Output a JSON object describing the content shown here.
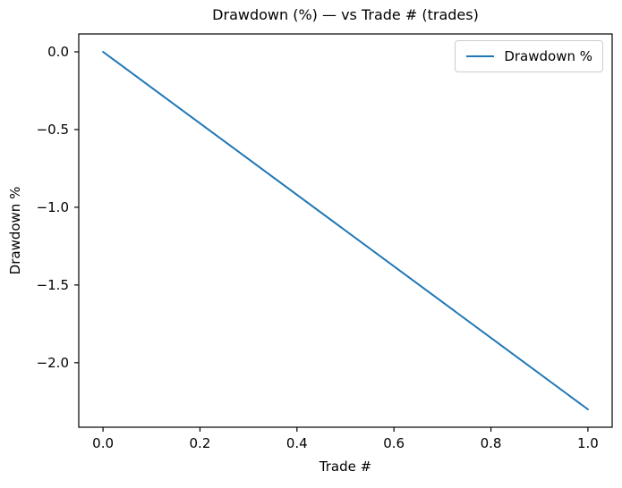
{
  "chart_data": {
    "type": "line",
    "title": "Drawdown (%) — vs Trade # (trades)",
    "xlabel": "Trade #",
    "ylabel": "Drawdown %",
    "series": [
      {
        "name": "Drawdown %",
        "color": "#1f77b4",
        "x": [
          0.0,
          1.0
        ],
        "y": [
          0.0,
          -2.3
        ]
      }
    ],
    "xlim": [
      -0.05,
      1.05
    ],
    "ylim": [
      -2.415,
      0.115
    ],
    "xticks": [
      0.0,
      0.2,
      0.4,
      0.6,
      0.8,
      1.0
    ],
    "xtick_labels": [
      "0.0",
      "0.2",
      "0.4",
      "0.6",
      "0.8",
      "1.0"
    ],
    "yticks": [
      0.0,
      -0.5,
      -1.0,
      -1.5,
      -2.0
    ],
    "ytick_labels": [
      "0.0",
      "−0.5",
      "−1.0",
      "−1.5",
      "−2.0"
    ],
    "grid": false,
    "legend": {
      "position": "upper right",
      "entries": [
        "Drawdown %"
      ]
    }
  }
}
